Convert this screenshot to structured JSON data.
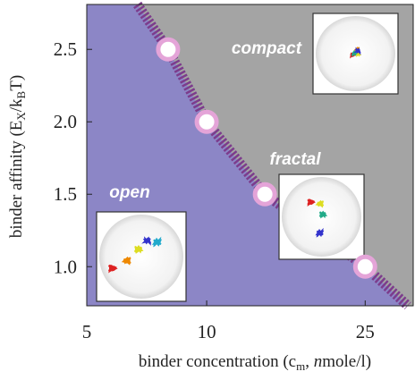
{
  "chart_data": {
    "type": "phase",
    "xscale": "log",
    "xlim": [
      5,
      33
    ],
    "xticks": [
      5,
      10,
      25
    ],
    "ylim": [
      0.73,
      2.81
    ],
    "yticks": [
      {
        "value": 1,
        "label": "1.0"
      },
      {
        "value": 1.5,
        "label": "1.5"
      },
      {
        "value": 2,
        "label": "2.0"
      },
      {
        "value": 2.5,
        "label": "2.5"
      }
    ],
    "xlabel": [
      "binder concentration (c",
      "m",
      ", ",
      "n",
      "mole/l)"
    ],
    "ylabel": [
      "binder affinity (E",
      "X",
      "/k",
      "B",
      "T)"
    ],
    "regions": {
      "open": "#8c86c6",
      "collapsed": "#a4a4a4"
    },
    "points": {
      "x": [
        8,
        10,
        14,
        25
      ],
      "y": [
        2.5,
        2.0,
        1.5,
        1.0
      ],
      "color": "#e4a4d8"
    },
    "boundary": {
      "x": [
        6.7,
        8,
        10,
        14,
        25,
        32
      ],
      "y": [
        2.81,
        2.5,
        2.0,
        1.5,
        1.0,
        0.73
      ],
      "color": "#7c3c8c"
    },
    "annotations": [
      "open",
      "fractal",
      "compact"
    ]
  }
}
